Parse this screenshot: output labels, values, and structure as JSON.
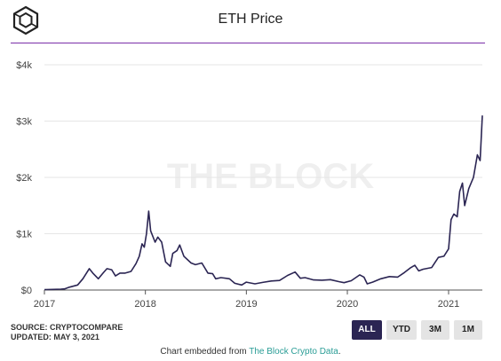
{
  "header": {
    "title": "ETH Price"
  },
  "logo": {
    "icon": "the-block-cube-logo"
  },
  "source": {
    "line1": "SOURCE: CRYPTOCOMPARE",
    "line2": "UPDATED: MAY 3, 2021"
  },
  "range_buttons": [
    {
      "label": "ALL",
      "active": true
    },
    {
      "label": "YTD",
      "active": false
    },
    {
      "label": "3M",
      "active": false
    },
    {
      "label": "1M",
      "active": false
    }
  ],
  "footer": {
    "prefix": "Chart embedded from ",
    "link": "The Block Crypto Data",
    "suffix": "."
  },
  "colors": {
    "line": "#2b2553",
    "accent_rule": "#7b2fa8",
    "active_button": "#2b2553",
    "link": "#2a9d96"
  },
  "chart_data": {
    "type": "line",
    "title": "ETH Price",
    "watermark": "THE BLOCK",
    "xlabel": "",
    "ylabel": "",
    "ylim": [
      0,
      4000
    ],
    "xlim": [
      "2017-01-01",
      "2021-05-03"
    ],
    "yticks": [
      0,
      1000,
      2000,
      3000,
      4000
    ],
    "ytick_labels": [
      "$0",
      "$1k",
      "$2k",
      "$3k",
      "$4k"
    ],
    "xticks": [
      "2017-01-01",
      "2018-01-01",
      "2019-01-01",
      "2020-01-01",
      "2021-01-01"
    ],
    "xtick_labels": [
      "2017",
      "2018",
      "2019",
      "2020",
      "2021"
    ],
    "grid": true,
    "legend": "none",
    "series": [
      {
        "x": [
          "2017-01-01",
          "2017-02-01",
          "2017-03-01",
          "2017-03-15",
          "2017-04-01",
          "2017-05-01",
          "2017-05-20",
          "2017-06-12",
          "2017-06-25",
          "2017-07-15",
          "2017-08-01",
          "2017-08-15",
          "2017-09-01",
          "2017-09-15",
          "2017-10-01",
          "2017-10-20",
          "2017-11-10",
          "2017-11-28",
          "2017-12-10",
          "2017-12-20",
          "2017-12-28",
          "2018-01-05",
          "2018-01-13",
          "2018-01-20",
          "2018-02-05",
          "2018-02-15",
          "2018-03-01",
          "2018-03-15",
          "2018-04-01",
          "2018-04-10",
          "2018-04-25",
          "2018-05-05",
          "2018-05-20",
          "2018-06-15",
          "2018-07-01",
          "2018-07-24",
          "2018-08-15",
          "2018-09-01",
          "2018-09-12",
          "2018-10-01",
          "2018-11-01",
          "2018-11-20",
          "2018-12-15",
          "2019-01-01",
          "2019-02-01",
          "2019-03-01",
          "2019-04-01",
          "2019-05-01",
          "2019-05-30",
          "2019-06-26",
          "2019-07-15",
          "2019-08-01",
          "2019-09-01",
          "2019-10-01",
          "2019-11-01",
          "2019-12-01",
          "2019-12-20",
          "2020-01-15",
          "2020-02-15",
          "2020-03-01",
          "2020-03-13",
          "2020-04-01",
          "2020-05-01",
          "2020-06-01",
          "2020-07-01",
          "2020-07-25",
          "2020-08-15",
          "2020-09-01",
          "2020-09-15",
          "2020-10-01",
          "2020-11-01",
          "2020-11-25",
          "2020-12-15",
          "2021-01-01",
          "2021-01-10",
          "2021-01-20",
          "2021-02-01",
          "2021-02-10",
          "2021-02-20",
          "2021-02-28",
          "2021-03-15",
          "2021-04-01",
          "2021-04-15",
          "2021-04-25",
          "2021-05-03"
        ],
        "y": [
          8,
          11,
          16,
          20,
          50,
          90,
          200,
          380,
          300,
          200,
          300,
          380,
          360,
          250,
          300,
          300,
          330,
          470,
          600,
          820,
          760,
          1000,
          1400,
          1050,
          850,
          940,
          850,
          500,
          420,
          650,
          700,
          800,
          600,
          480,
          450,
          480,
          300,
          290,
          200,
          220,
          200,
          120,
          90,
          140,
          110,
          135,
          160,
          170,
          260,
          320,
          210,
          220,
          180,
          175,
          185,
          150,
          130,
          165,
          270,
          230,
          110,
          140,
          200,
          240,
          230,
          310,
          390,
          440,
          340,
          370,
          400,
          580,
          600,
          730,
          1250,
          1350,
          1300,
          1750,
          1900,
          1500,
          1800,
          2000,
          2400,
          2300,
          3100
        ]
      }
    ]
  }
}
